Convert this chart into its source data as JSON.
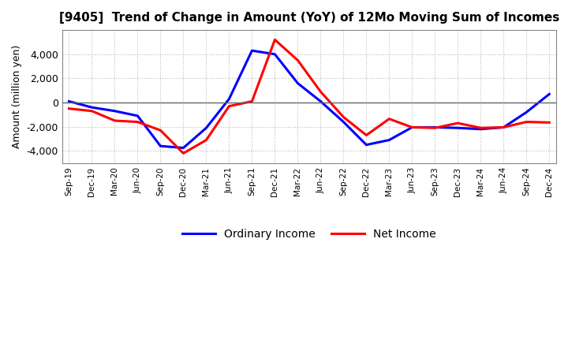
{
  "title": "[9405]  Trend of Change in Amount (YoY) of 12Mo Moving Sum of Incomes",
  "ylabel": "Amount (million yen)",
  "x_labels": [
    "Sep-19",
    "Dec-19",
    "Mar-20",
    "Jun-20",
    "Sep-20",
    "Dec-20",
    "Mar-21",
    "Jun-21",
    "Sep-21",
    "Dec-21",
    "Mar-22",
    "Jun-22",
    "Sep-22",
    "Dec-22",
    "Mar-23",
    "Jun-23",
    "Sep-23",
    "Dec-23",
    "Mar-24",
    "Jun-24",
    "Sep-24",
    "Dec-24"
  ],
  "ordinary_income": [
    100,
    -400,
    -700,
    -1100,
    -3600,
    -3750,
    -2100,
    300,
    4300,
    4000,
    1600,
    100,
    -1600,
    -3500,
    -3100,
    -2050,
    -2050,
    -2100,
    -2200,
    -2050,
    -800,
    700
  ],
  "net_income": [
    -500,
    -700,
    -1500,
    -1600,
    -2300,
    -4200,
    -3100,
    -300,
    100,
    5200,
    3500,
    900,
    -1200,
    -2700,
    -1350,
    -2050,
    -2100,
    -1700,
    -2100,
    -2050,
    -1600,
    -1650
  ],
  "ordinary_income_color": "#0000FF",
  "net_income_color": "#FF0000",
  "ylim": [
    -5000,
    6000
  ],
  "yticks": [
    -4000,
    -2000,
    0,
    2000,
    4000
  ],
  "background_color": "#FFFFFF",
  "grid_color": "#BBBBBB",
  "legend_labels": [
    "Ordinary Income",
    "Net Income"
  ]
}
